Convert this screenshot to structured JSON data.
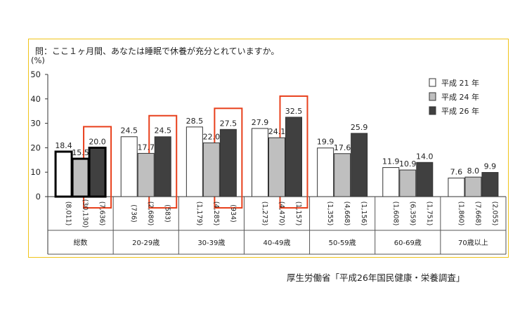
{
  "question": "問：ここ１ヶ月間、あなたは睡眠で休養が充分とれていますか。",
  "source": "厚生労働省「平成26年国民健康・栄養調査」",
  "chart_data": {
    "type": "bar",
    "ylabel": "(%)",
    "ylim": [
      0,
      50
    ],
    "yticks": [
      0,
      10,
      20,
      30,
      40,
      50
    ],
    "categories": [
      "総数",
      "20-29歳",
      "30-39歳",
      "40-49歳",
      "50-59歳",
      "60-69歳",
      "70歳以上"
    ],
    "series": [
      {
        "name": "平成 21 年",
        "color": "#ffffff",
        "values": [
          18.4,
          24.5,
          28.5,
          27.9,
          19.9,
          11.9,
          7.6
        ],
        "labels": [
          "18.4",
          "24.5",
          "28.5",
          "27.9",
          "19.9",
          "11.9",
          "7.6"
        ],
        "counts": [
          "(8,011)",
          "(736)",
          "(1,179)",
          "(1,273)",
          "(1,355)",
          "(1,608)",
          "(1,860)"
        ]
      },
      {
        "name": "平成 24 年",
        "color": "#bfbfbf",
        "values": [
          15.5,
          17.7,
          22.0,
          24.1,
          17.6,
          10.9,
          8.0
        ],
        "labels": [
          "15.5",
          "17.7",
          "22.0",
          "24.1",
          "17.6",
          "10.9",
          "8.0"
        ],
        "counts": [
          "(30,130)",
          "(2,680)",
          "(4,285)",
          "(4,470)",
          "(4,668)",
          "(6,359)",
          "(7,668)"
        ]
      },
      {
        "name": "平成 26 年",
        "color": "#404040",
        "values": [
          20.0,
          24.5,
          27.5,
          32.5,
          25.9,
          14.0,
          9.9
        ],
        "labels": [
          "20.0",
          "24.5",
          "27.5",
          "32.5",
          "25.9",
          "14.0",
          "9.9"
        ],
        "counts": [
          "(7,636)",
          "(583)",
          "(934)",
          "(1,157)",
          "(1,156)",
          "(1,751)",
          "(2,055)"
        ]
      }
    ],
    "highlighted_categories": [
      "総数",
      "20-29歳",
      "30-39歳",
      "40-49歳"
    ],
    "highlight_color": "#e8401c",
    "emphasized_category": "総数",
    "legend_position": "top-right",
    "grid": false
  }
}
